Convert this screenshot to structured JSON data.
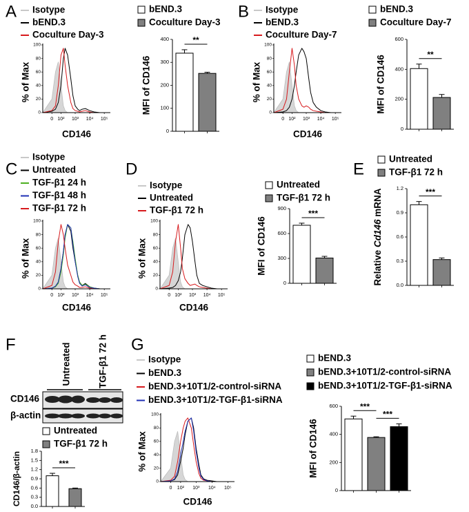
{
  "panel_labels": [
    "A",
    "B",
    "C",
    "D",
    "E",
    "F",
    "G"
  ],
  "blot": {
    "lanes": [
      "Untreated",
      "TGF-β1 72 h"
    ],
    "rows": [
      "CD146",
      "β-actin"
    ]
  },
  "chart_data": [
    {
      "type": "line",
      "xscale": "biexponential",
      "xlabel": "CD146",
      "ylabel": "% of Max",
      "x": [
        -100,
        0,
        30,
        60,
        100,
        150,
        200,
        300,
        500,
        700,
        1000,
        1500,
        2000,
        3000,
        5000,
        10000,
        20000,
        50000
      ],
      "xlim": [
        -100,
        262144
      ],
      "xticks": [
        0,
        {
          "value": 100,
          "label": "10²"
        },
        {
          "value": 1000,
          "label": "10³"
        },
        {
          "value": 10000,
          "label": "10⁴"
        },
        {
          "value": 100000,
          "label": "10⁵"
        }
      ],
      "ylim": [
        0,
        100
      ],
      "yticks": [
        0,
        20,
        40,
        60,
        80,
        100
      ],
      "series": [
        {
          "name": "Isotype",
          "color": "#c8c8c8",
          "filled": true,
          "values": [
            0,
            20,
            60,
            75,
            40,
            10,
            3,
            0,
            0,
            0,
            0,
            0,
            0,
            0,
            0,
            0,
            0,
            0
          ]
        },
        {
          "name": "bEND.3",
          "color": "#000000",
          "values": [
            0,
            2,
            5,
            15,
            40,
            80,
            95,
            85,
            50,
            25,
            10,
            5,
            3,
            5,
            6,
            3,
            1,
            0
          ]
        },
        {
          "name": "Coculture Day-3",
          "color": "#d7191c",
          "values": [
            0,
            3,
            10,
            40,
            85,
            95,
            70,
            40,
            15,
            6,
            3,
            2,
            1,
            2,
            3,
            1,
            0,
            0
          ]
        }
      ]
    },
    {
      "type": "bar",
      "ylabel": "MFI of CD146",
      "ylim": [
        0,
        400
      ],
      "yticks": [
        0,
        100,
        200,
        300,
        400
      ],
      "annotations": [
        "**"
      ],
      "series": [
        {
          "name": "bEND.3",
          "color": "#ffffff",
          "values": [
            340
          ],
          "errors": [
            15
          ]
        },
        {
          "name": "Coculture Day-3",
          "color": "#808080",
          "values": [
            252
          ],
          "errors": [
            5
          ]
        }
      ]
    },
    {
      "type": "line",
      "xscale": "biexponential",
      "xlabel": "CD146",
      "ylabel": "% of Max",
      "x": [
        -100,
        0,
        30,
        60,
        100,
        150,
        200,
        300,
        500,
        700,
        1000,
        1500,
        2000,
        3000,
        5000,
        10000,
        20000,
        50000
      ],
      "xlim": [
        -100,
        262144
      ],
      "xticks": [
        0,
        {
          "value": 100,
          "label": "10²"
        },
        {
          "value": 1000,
          "label": "10³"
        },
        {
          "value": 10000,
          "label": "10⁴"
        },
        {
          "value": 100000,
          "label": "10⁵"
        }
      ],
      "ylim": [
        0,
        100
      ],
      "yticks": [
        0,
        20,
        40,
        60,
        80,
        100
      ],
      "series": [
        {
          "name": "Isotype",
          "color": "#c8c8c8",
          "filled": true,
          "values": [
            0,
            20,
            60,
            75,
            40,
            10,
            3,
            0,
            0,
            0,
            0,
            0,
            0,
            0,
            0,
            0,
            0,
            0
          ]
        },
        {
          "name": "bEND.3",
          "color": "#000000",
          "values": [
            0,
            1,
            3,
            8,
            20,
            40,
            60,
            85,
            95,
            90,
            80,
            50,
            30,
            15,
            8,
            3,
            1,
            0
          ]
        },
        {
          "name": "Coculture Day-7",
          "color": "#d7191c",
          "values": [
            0,
            5,
            20,
            60,
            95,
            70,
            40,
            20,
            10,
            8,
            10,
            8,
            5,
            3,
            2,
            1,
            0,
            0
          ]
        }
      ]
    },
    {
      "type": "bar",
      "ylabel": "MFI of CD146",
      "ylim": [
        0,
        600
      ],
      "yticks": [
        0,
        200,
        400,
        600
      ],
      "annotations": [
        "**"
      ],
      "series": [
        {
          "name": "bEND.3",
          "color": "#ffffff",
          "values": [
            405
          ],
          "errors": [
            30
          ]
        },
        {
          "name": "Coculture Day-7",
          "color": "#808080",
          "values": [
            212
          ],
          "errors": [
            20
          ]
        }
      ]
    },
    {
      "type": "line",
      "xscale": "biexponential",
      "xlabel": "CD146",
      "ylabel": "% of Max",
      "x": [
        -100,
        0,
        30,
        60,
        100,
        150,
        200,
        300,
        500,
        700,
        1000,
        1500,
        2000,
        3000,
        5000,
        10000,
        20000,
        50000
      ],
      "xlim": [
        -100,
        262144
      ],
      "xticks": [
        0,
        {
          "value": 100,
          "label": "10²"
        },
        {
          "value": 1000,
          "label": "10³"
        },
        {
          "value": 10000,
          "label": "10⁴"
        },
        {
          "value": 100000,
          "label": "10⁵"
        }
      ],
      "ylim": [
        0,
        100
      ],
      "yticks": [
        0,
        20,
        40,
        60,
        80,
        100
      ],
      "series": [
        {
          "name": "Isotype",
          "color": "#c8c8c8",
          "filled": true,
          "values": [
            0,
            20,
            60,
            75,
            40,
            10,
            3,
            0,
            0,
            0,
            0,
            0,
            0,
            0,
            0,
            0,
            0,
            0
          ]
        },
        {
          "name": "Untreated",
          "color": "#000000",
          "values": [
            0,
            1,
            3,
            10,
            30,
            55,
            80,
            95,
            85,
            60,
            40,
            20,
            10,
            5,
            8,
            3,
            1,
            0
          ]
        },
        {
          "name": "TGF-β1 24 h",
          "color": "#4caf1f",
          "values": [
            0,
            1,
            3,
            8,
            25,
            50,
            75,
            95,
            90,
            70,
            45,
            20,
            10,
            5,
            7,
            3,
            1,
            0
          ]
        },
        {
          "name": "TGF-β1 48 h",
          "color": "#1f2fb4",
          "values": [
            0,
            1,
            4,
            10,
            30,
            55,
            80,
            95,
            90,
            65,
            40,
            18,
            8,
            4,
            6,
            2,
            1,
            0
          ]
        },
        {
          "name": "TGF-β1 72 h",
          "color": "#d7191c",
          "values": [
            0,
            5,
            25,
            70,
            95,
            80,
            60,
            35,
            20,
            10,
            6,
            4,
            2,
            2,
            3,
            1,
            0,
            0
          ]
        }
      ]
    },
    {
      "type": "line",
      "xscale": "biexponential",
      "xlabel": "CD146",
      "ylabel": "% of Max",
      "x": [
        -100,
        0,
        30,
        60,
        100,
        150,
        200,
        300,
        500,
        700,
        1000,
        1500,
        2000,
        3000,
        5000,
        10000,
        20000,
        50000
      ],
      "xlim": [
        -100,
        262144
      ],
      "xticks": [
        0,
        {
          "value": 100,
          "label": "10²"
        },
        {
          "value": 1000,
          "label": "10³"
        },
        {
          "value": 10000,
          "label": "10⁴"
        },
        {
          "value": 100000,
          "label": "10⁵"
        }
      ],
      "ylim": [
        0,
        100
      ],
      "yticks": [
        0,
        20,
        40,
        60,
        80,
        100
      ],
      "series": [
        {
          "name": "Isotype",
          "color": "#c8c8c8",
          "filled": true,
          "values": [
            0,
            20,
            60,
            75,
            40,
            10,
            3,
            0,
            0,
            0,
            0,
            0,
            0,
            0,
            0,
            0,
            0,
            0
          ]
        },
        {
          "name": "Untreated",
          "color": "#000000",
          "values": [
            0,
            1,
            2,
            5,
            12,
            25,
            45,
            80,
            95,
            90,
            70,
            40,
            20,
            8,
            5,
            3,
            1,
            0
          ]
        },
        {
          "name": "TGF-β1 72 h",
          "color": "#d7191c",
          "values": [
            0,
            5,
            25,
            70,
            95,
            60,
            30,
            15,
            8,
            5,
            6,
            7,
            5,
            3,
            2,
            1,
            0,
            0
          ]
        }
      ]
    },
    {
      "type": "bar",
      "ylabel": "MFI of CD146",
      "ylim": [
        0,
        900
      ],
      "yticks": [
        0,
        300,
        600,
        900
      ],
      "annotations": [
        "***"
      ],
      "series": [
        {
          "name": "Untreated",
          "color": "#ffffff",
          "values": [
            700
          ],
          "errors": [
            25
          ]
        },
        {
          "name": "TGF-β1 72 h",
          "color": "#808080",
          "values": [
            305
          ],
          "errors": [
            20
          ]
        }
      ]
    },
    {
      "type": "bar",
      "ylabel": {
        "before": "Relative",
        "italic": "Cd146",
        "after": "mRNA"
      },
      "ylim": [
        0,
        1.2
      ],
      "yticks": [
        {
          "value": 0,
          "label": "0.0"
        },
        0.3,
        0.6,
        0.9,
        1.2
      ],
      "annotations": [
        "***"
      ],
      "series": [
        {
          "name": "Untreated",
          "color": "#ffffff",
          "values": [
            1.0
          ],
          "errors": [
            0.04
          ]
        },
        {
          "name": "TGF-β1 72 h",
          "color": "#808080",
          "values": [
            0.32
          ],
          "errors": [
            0.02
          ]
        }
      ]
    },
    {
      "type": "bar",
      "ylabel": "CD146/β-actin",
      "ylim": [
        0,
        1.8
      ],
      "yticks": [
        {
          "value": 0,
          "label": "0.0"
        },
        0.3,
        0.6,
        0.9,
        1.2,
        1.5,
        1.8
      ],
      "annotations": [
        "***"
      ],
      "series": [
        {
          "name": "Untreated",
          "color": "#ffffff",
          "values": [
            1.0
          ],
          "errors": [
            0.08
          ]
        },
        {
          "name": "TGF-β1 72 h",
          "color": "#808080",
          "values": [
            0.58
          ],
          "errors": [
            0.02
          ]
        }
      ]
    },
    {
      "type": "line",
      "xscale": "biexponential",
      "xlabel": "CD146",
      "ylabel": "% of Max",
      "x": [
        -100,
        0,
        30,
        60,
        100,
        150,
        200,
        300,
        500,
        700,
        1000,
        1500,
        2000,
        3000,
        5000,
        10000,
        20000,
        50000
      ],
      "xlim": [
        -100,
        262144
      ],
      "xticks": [
        0,
        {
          "value": 100,
          "label": "10²"
        },
        {
          "value": 1000,
          "label": "10³"
        },
        {
          "value": 10000,
          "label": "10⁴"
        },
        {
          "value": 100000,
          "label": "10⁵"
        }
      ],
      "ylim": [
        0,
        100
      ],
      "yticks": [
        0,
        20,
        40,
        60,
        80,
        100
      ],
      "series": [
        {
          "name": "Isotype",
          "color": "#c8c8c8",
          "filled": true,
          "values": [
            0,
            20,
            60,
            75,
            40,
            10,
            3,
            0,
            0,
            0,
            0,
            0,
            0,
            0,
            0,
            0,
            0,
            0
          ]
        },
        {
          "name": "bEND.3",
          "color": "#000000",
          "values": [
            0,
            1,
            3,
            10,
            30,
            50,
            70,
            90,
            95,
            80,
            50,
            25,
            10,
            4,
            2,
            1,
            0,
            0
          ]
        },
        {
          "name": "bEND.3+10T1/2-control-siRNA",
          "color": "#d7191c",
          "values": [
            0,
            2,
            8,
            30,
            60,
            80,
            90,
            95,
            80,
            55,
            30,
            12,
            5,
            2,
            1,
            0,
            0,
            0
          ]
        },
        {
          "name": "bEND.3+10T1/2-TGF-β1-siRNA",
          "color": "#1f2fb4",
          "values": [
            0,
            1,
            4,
            15,
            40,
            60,
            75,
            90,
            95,
            75,
            45,
            20,
            8,
            3,
            1,
            0,
            0,
            0
          ]
        }
      ]
    },
    {
      "type": "bar",
      "ylabel": "MFI of CD146",
      "ylim": [
        0,
        600
      ],
      "yticks": [
        0,
        200,
        400,
        600
      ],
      "annotations": [
        "***",
        "***"
      ],
      "series": [
        {
          "name": "bEND.3",
          "color": "#ffffff",
          "values": [
            510
          ],
          "errors": [
            20
          ]
        },
        {
          "name": "bEND.3+10T1/2-control-siRNA",
          "color": "#808080",
          "values": [
            378
          ],
          "errors": [
            5
          ]
        },
        {
          "name": "bEND.3+10T1/2-TGF-β1-siRNA",
          "color": "#000000",
          "values": [
            455
          ],
          "errors": [
            20
          ]
        }
      ]
    }
  ]
}
